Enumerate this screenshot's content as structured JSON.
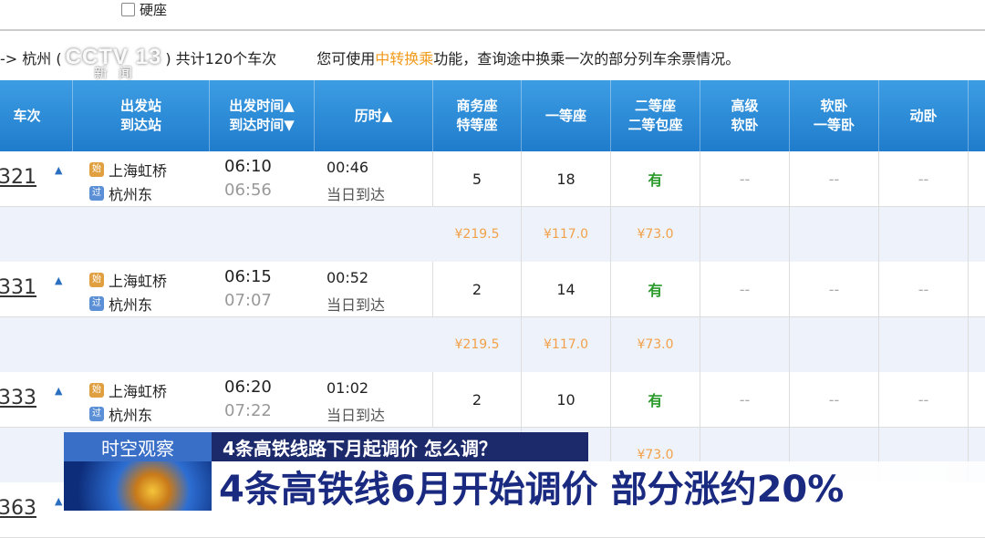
{
  "filter": {
    "seat_option": "硬座",
    "checked": false
  },
  "info": {
    "route_prefix": "-> 杭州 (",
    "route_suffix": ") 共计120个车次",
    "hint_before": "您可使用",
    "hint_link": "中转换乘",
    "hint_after": "功能，查询途中换乘一次的部分列车余票情况。"
  },
  "watermark": {
    "logo": "CCTV 13",
    "sub": "新闻"
  },
  "headers": [
    "车次",
    "出发站\n到达站",
    "出发时间▲\n到达时间▼",
    "历时▲",
    "商务座\n特等座",
    "一等座",
    "二等座\n二等包座",
    "高级\n软卧",
    "软卧\n一等卧",
    "动卧"
  ],
  "trains": [
    {
      "no": "321",
      "from": "上海虹桥",
      "to": "杭州东",
      "dep": "06:10",
      "arr": "06:56",
      "dur": "00:46",
      "day": "当日到达",
      "seats": [
        "5",
        "18",
        "有",
        "--",
        "--",
        "--"
      ],
      "prices": [
        "¥219.5",
        "¥117.0",
        "¥73.0"
      ]
    },
    {
      "no": "331",
      "from": "上海虹桥",
      "to": "杭州东",
      "dep": "06:15",
      "arr": "07:07",
      "dur": "00:52",
      "day": "当日到达",
      "seats": [
        "2",
        "14",
        "有",
        "--",
        "--",
        "--"
      ],
      "prices": [
        "¥219.5",
        "¥117.0",
        "¥73.0"
      ]
    },
    {
      "no": "333",
      "from": "上海虹桥",
      "to": "杭州东",
      "dep": "06:20",
      "arr": "07:22",
      "dur": "01:02",
      "day": "当日到达",
      "seats": [
        "2",
        "10",
        "有",
        "--",
        "--",
        "--"
      ],
      "prices": [
        "",
        "",
        "¥73.0"
      ]
    },
    {
      "no": "363"
    }
  ],
  "station_icons": {
    "from": "始",
    "to": "过"
  },
  "news": {
    "program": "时空观察",
    "topic": "4条高铁线路下月起调价 怎么调？",
    "headline": "4条高铁线6月开始调价 部分涨约20%"
  },
  "colors": {
    "header_blue": "#1f7ccc",
    "price_orange": "#f2a14a",
    "available_green": "#2a9a2a",
    "headline_navy": "#1a2a80"
  }
}
